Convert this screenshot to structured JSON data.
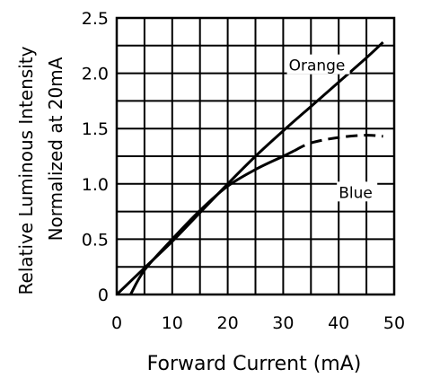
{
  "chart_data": {
    "type": "line",
    "title": "",
    "xlabel": "Forward Current (mA)",
    "ylabel": [
      "Relative Luminous Intensity",
      "Normalized at 20mA"
    ],
    "xlim": [
      0,
      50
    ],
    "ylim": [
      0,
      2.5
    ],
    "x_ticks": [
      0,
      10,
      20,
      30,
      40,
      50
    ],
    "x_tick_labels": [
      "0",
      "10",
      "20",
      "30",
      "40",
      "50"
    ],
    "y_ticks": [
      0,
      0.5,
      1.0,
      1.5,
      2.0,
      2.5
    ],
    "y_tick_labels": [
      "0",
      "0.5",
      "1.0",
      "1.5",
      "2.0",
      "2.5"
    ],
    "x_grid_step": 5,
    "y_grid_step": 0.25,
    "grid": true,
    "series": [
      {
        "name": "Orange",
        "x": [
          0,
          5,
          10,
          15,
          20,
          25,
          30,
          35,
          40,
          45,
          48
        ],
        "y": [
          0,
          0.24,
          0.48,
          0.74,
          1.0,
          1.25,
          1.48,
          1.7,
          1.92,
          2.14,
          2.28
        ],
        "style": "solid"
      },
      {
        "name": "Blue",
        "x": [
          2.5,
          5,
          10,
          15,
          20,
          25,
          30,
          32,
          35,
          40,
          45,
          48
        ],
        "y": [
          0,
          0.22,
          0.5,
          0.76,
          0.98,
          1.13,
          1.25,
          1.3,
          1.37,
          1.42,
          1.44,
          1.43
        ],
        "style": "solid",
        "dashed_from_x": 32
      }
    ]
  }
}
